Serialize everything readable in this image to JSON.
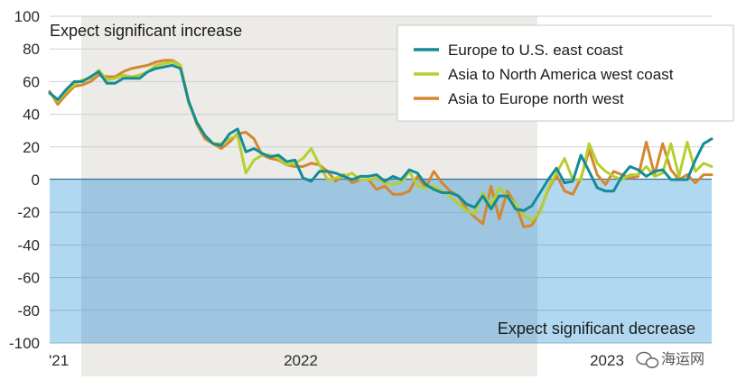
{
  "chart_data": {
    "type": "line",
    "ylim": [
      -100,
      100
    ],
    "y_ticks": [
      "100",
      "80",
      "60",
      "40",
      "20",
      "0",
      "-20",
      "-40",
      "-60",
      "-80",
      "-100"
    ],
    "x_tick_labels": [
      "'21",
      "2022",
      "2023"
    ],
    "annotations": {
      "top": "Expect significant increase",
      "bottom": "Expect significant decrease"
    },
    "legend_position": "top-right",
    "grid": true,
    "series": [
      {
        "name": "Europe to U.S. east coast",
        "color": "#138c95",
        "values": [
          53,
          49,
          55,
          60,
          60,
          63,
          66,
          59,
          59,
          62,
          62,
          62,
          66,
          68,
          69,
          70,
          68,
          48,
          35,
          27,
          22,
          21,
          28,
          31,
          17,
          19,
          16,
          14,
          15,
          11,
          12,
          1,
          -1,
          5,
          5,
          4,
          2,
          0,
          2,
          2,
          3,
          -1,
          2,
          0,
          6,
          4,
          -3,
          -6,
          -8,
          -8,
          -10,
          -15,
          -17,
          -10,
          -18,
          -10,
          -10,
          -18,
          -19,
          -16,
          -8,
          0,
          7,
          -2,
          -1,
          15,
          5,
          -5,
          -7,
          -7,
          2,
          8,
          6,
          2,
          5,
          6,
          0,
          0,
          0,
          12,
          22,
          25
        ]
      },
      {
        "name": "Asia to North America west coast",
        "color": "#b6cf2f",
        "values": [
          53,
          48,
          54,
          58,
          61,
          62,
          67,
          61,
          62,
          64,
          63,
          64,
          66,
          70,
          71,
          72,
          70,
          47,
          35,
          27,
          22,
          22,
          25,
          27,
          4,
          12,
          15,
          15,
          13,
          9,
          10,
          13,
          19,
          9,
          0,
          1,
          2,
          4,
          0,
          0,
          1,
          -2,
          -3,
          -2,
          5,
          -4,
          -5,
          -4,
          -7,
          -10,
          -15,
          -19,
          -21,
          -8,
          -16,
          -5,
          -10,
          -15,
          -22,
          -25,
          -20,
          -5,
          4,
          13,
          0,
          0,
          22,
          10,
          5,
          2,
          0,
          3,
          3,
          8,
          2,
          4,
          22,
          2,
          23,
          5,
          10,
          8
        ]
      },
      {
        "name": "Asia to Europe north west",
        "color": "#d4872e",
        "values": [
          54,
          46,
          52,
          57,
          58,
          60,
          64,
          63,
          63,
          66,
          68,
          69,
          70,
          72,
          73,
          73,
          70,
          48,
          34,
          25,
          22,
          19,
          23,
          28,
          29,
          25,
          15,
          13,
          12,
          9,
          8,
          8,
          10,
          9,
          5,
          -1,
          3,
          -2,
          0,
          0,
          -6,
          -4,
          -9,
          -9,
          -7,
          2,
          -5,
          5,
          -2,
          -7,
          -10,
          -18,
          -23,
          -27,
          -4,
          -24,
          -7,
          -15,
          -29,
          -28,
          -19,
          -6,
          3,
          -7,
          -9,
          1,
          18,
          3,
          -3,
          5,
          3,
          1,
          2,
          23,
          3,
          22,
          6,
          0,
          3,
          -2,
          3,
          3
        ]
      }
    ]
  },
  "watermark": {
    "icon": "wechat-icon",
    "text": "海运网"
  }
}
